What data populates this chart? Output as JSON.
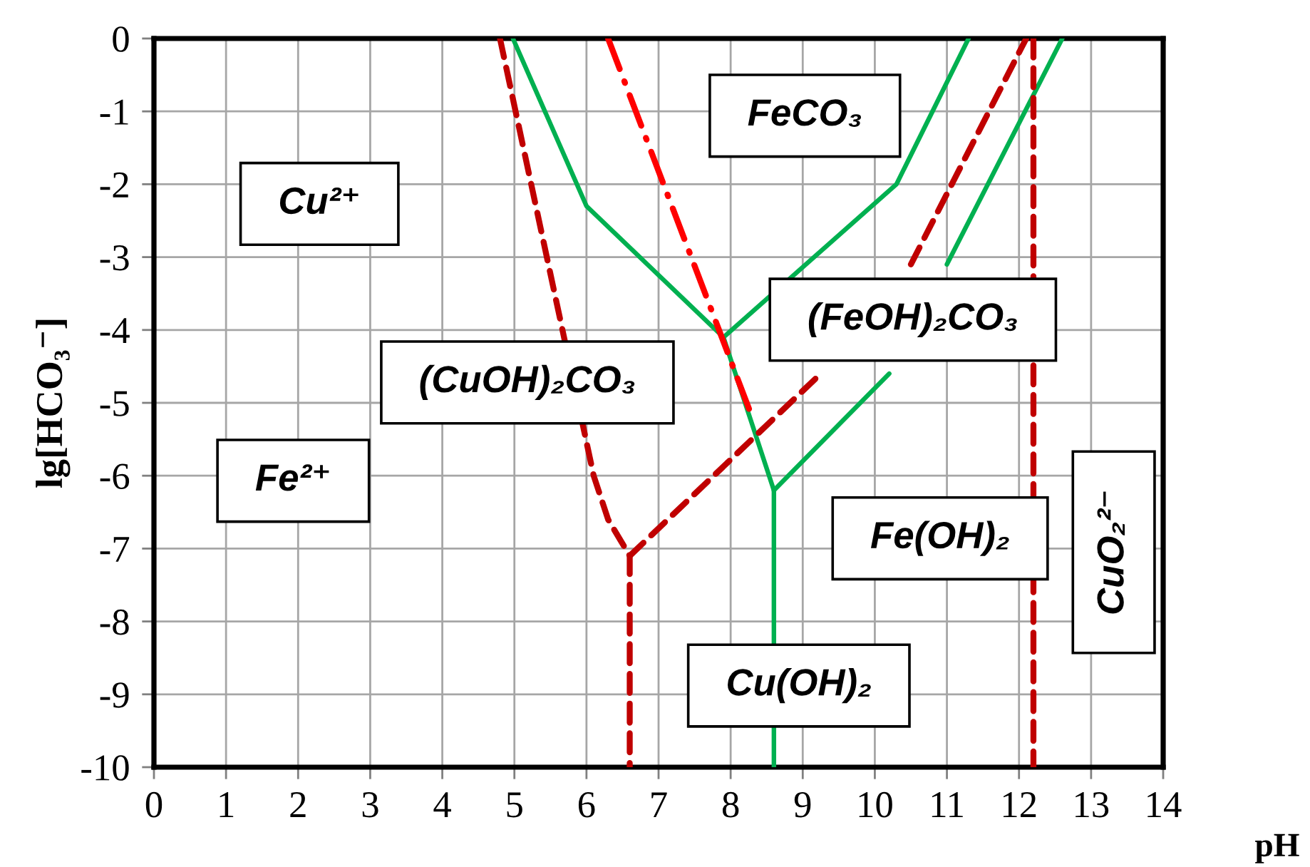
{
  "chart_data": {
    "type": "line",
    "xlabel": "pH",
    "ylabel": "lg[HCO₃⁻]",
    "xlim": [
      0,
      14
    ],
    "ylim": [
      -10,
      0
    ],
    "xticks": [
      0,
      1,
      2,
      3,
      4,
      5,
      6,
      7,
      8,
      9,
      10,
      11,
      12,
      13,
      14
    ],
    "yticks": [
      -10,
      -9,
      -8,
      -7,
      -6,
      -5,
      -4,
      -3,
      -2,
      -1,
      0
    ],
    "grid": true,
    "series": [
      {
        "color": "#00b050",
        "line_style": "solid",
        "x": [
          4.98,
          6.0,
          7.9,
          8.6,
          8.6
        ],
        "values": [
          0,
          -2.3,
          -4.1,
          -6.2,
          -10
        ]
      },
      {
        "color": "#00b050",
        "line_style": "solid",
        "x": [
          7.9,
          10.3,
          11.3
        ],
        "values": [
          -4.1,
          -2.0,
          0
        ]
      },
      {
        "color": "#00b050",
        "line_style": "solid",
        "x": [
          8.6,
          10.2,
          10.6,
          11.0,
          12.6
        ],
        "values": [
          -6.2,
          -4.6,
          null,
          -3.1,
          0
        ]
      },
      {
        "color": "#c00000",
        "line_style": "dashed",
        "x": [
          4.8,
          6.1,
          6.3,
          6.6,
          6.6
        ],
        "values": [
          0,
          -6.0,
          -6.6,
          -7.1,
          -10
        ]
      },
      {
        "color": "#c00000",
        "line_style": "dashed",
        "x": [
          6.6,
          9.25,
          9.9,
          10.5,
          12.1
        ],
        "values": [
          -7.1,
          -4.6,
          null,
          -3.1,
          0
        ]
      },
      {
        "color": "#c00000",
        "line_style": "dashed",
        "x": [
          12.2,
          12.2
        ],
        "values": [
          0,
          -10
        ]
      },
      {
        "color": "#ff0000",
        "line_style": "dashdot",
        "x": [
          6.3,
          8.3
        ],
        "values": [
          0,
          -5.2
        ]
      }
    ],
    "annotations": [
      "Cu²⁺",
      "FeCO₃",
      "(FeOH)₂CO₃",
      "(CuOH)₂CO₃",
      "Fe²⁺",
      "Fe(OH)₂",
      "CuO₂²⁻",
      "Cu(OH)₂"
    ]
  }
}
